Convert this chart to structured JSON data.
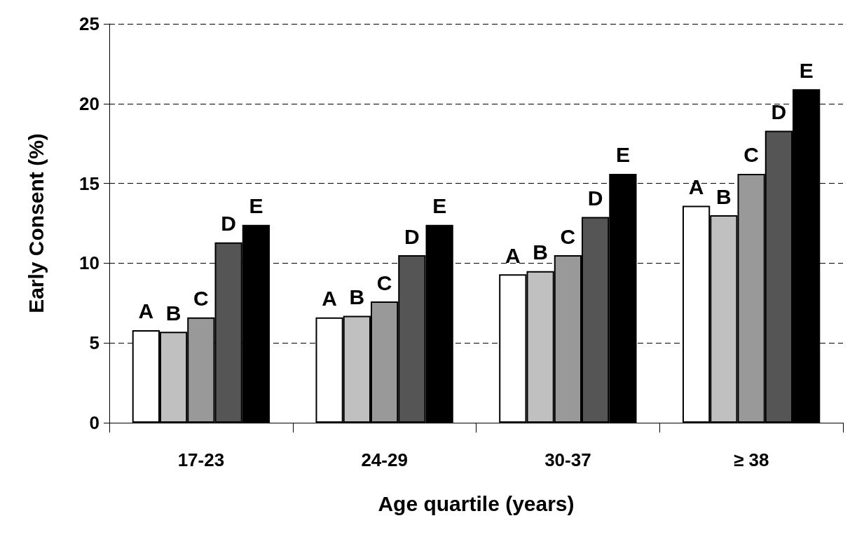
{
  "chart_data": {
    "type": "bar",
    "xlabel": "Age quartile (years)",
    "ylabel": "Early Consent (%)",
    "categories": [
      "17-23",
      "24-29",
      "30-37",
      "≥ 38"
    ],
    "series": [
      {
        "name": "A",
        "color": "#ffffff",
        "values": [
          5.8,
          6.6,
          9.3,
          13.6
        ]
      },
      {
        "name": "B",
        "color": "#c0c0c0",
        "values": [
          5.7,
          6.7,
          9.5,
          13.0
        ]
      },
      {
        "name": "C",
        "color": "#999999",
        "values": [
          6.6,
          7.6,
          10.5,
          15.6
        ]
      },
      {
        "name": "D",
        "color": "#555555",
        "values": [
          11.3,
          10.5,
          12.9,
          18.3
        ]
      },
      {
        "name": "E",
        "color": "#000000",
        "values": [
          12.4,
          12.4,
          15.6,
          20.9
        ]
      }
    ],
    "ylim": [
      0,
      25
    ],
    "yticks": [
      0,
      5,
      10,
      15,
      20,
      25
    ],
    "grid": "y",
    "legend": false
  }
}
